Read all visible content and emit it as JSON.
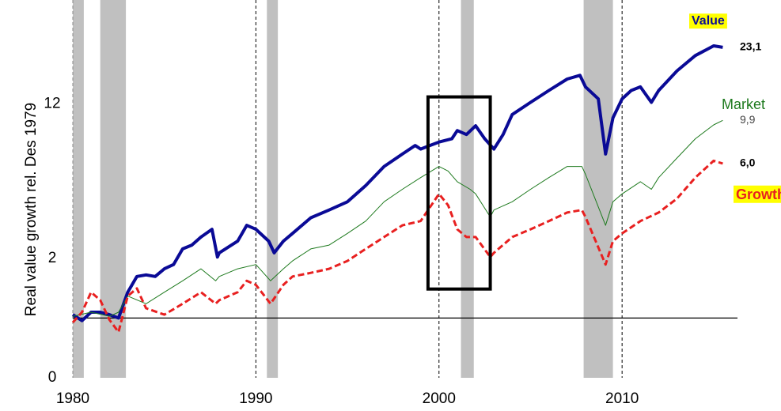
{
  "chart_data": {
    "type": "line",
    "y_label": "Real value growth rel.  Des 1979",
    "log_scale_y": true,
    "xlim": [
      1980,
      2016
    ],
    "xticks": [
      1980,
      1990,
      2000,
      2010
    ],
    "ylim": [
      0.5,
      40
    ],
    "yticks": [
      {
        "value": 0.5,
        "label": "0"
      },
      2,
      12
    ],
    "reference_line": 1,
    "recessions": [
      [
        1980,
        1980.6
      ],
      [
        1981.5,
        1982.9
      ],
      [
        1990.6,
        1991.2
      ],
      [
        2001.2,
        2001.9
      ],
      [
        2007.9,
        2009.5
      ]
    ],
    "highlight_box": {
      "x": [
        1999.4,
        2002.8
      ],
      "y": [
        1.4,
        13
      ]
    },
    "series": [
      {
        "name": "Value",
        "color": "#0a0a96",
        "line_width": 4,
        "dashed": false,
        "label_bg": "#ffff00",
        "end_label": "23,1",
        "x": [
          1980,
          1980.5,
          1981,
          1981.5,
          1982,
          1982.5,
          1983,
          1983.5,
          1984,
          1984.5,
          1985,
          1985.5,
          1986,
          1986.5,
          1987,
          1987.6,
          1987.9,
          1988,
          1989,
          1989.5,
          1990,
          1990.7,
          1991,
          1991.5,
          1992,
          1993,
          1994,
          1995,
          1996,
          1997,
          1998,
          1998.7,
          1999,
          1999.5,
          2000,
          2000.7,
          2001,
          2001.5,
          2002,
          2002.5,
          2003,
          2003.5,
          2004,
          2005,
          2006,
          2007,
          2007.7,
          2008,
          2008.7,
          2009.1,
          2009.5,
          2010,
          2010.5,
          2011,
          2011.6,
          2012,
          2013,
          2014,
          2015,
          2015.5
        ],
        "values": [
          1.04,
          0.97,
          1.07,
          1.07,
          1.04,
          1.0,
          1.35,
          1.62,
          1.65,
          1.62,
          1.77,
          1.86,
          2.23,
          2.33,
          2.56,
          2.8,
          2.03,
          2.13,
          2.44,
          2.93,
          2.8,
          2.44,
          2.13,
          2.44,
          2.67,
          3.2,
          3.5,
          3.85,
          4.65,
          5.8,
          6.7,
          7.4,
          7.1,
          7.4,
          7.7,
          8.0,
          8.8,
          8.4,
          9.3,
          8.0,
          7.1,
          8.4,
          10.6,
          12.2,
          14,
          16,
          16.7,
          14.6,
          12.7,
          6.7,
          10.2,
          12.7,
          14,
          14.6,
          12.2,
          14,
          17.6,
          21,
          23.5,
          23.1
        ]
      },
      {
        "name": "Market",
        "color": "#1e7a1e",
        "line_width": 1,
        "dashed": false,
        "end_label": "9,9",
        "x": [
          1980,
          1981,
          1982,
          1982.5,
          1983,
          1984,
          1985,
          1986,
          1987,
          1987.8,
          1988,
          1989,
          1990,
          1990.8,
          1991.5,
          1992,
          1993,
          1994,
          1995,
          1996,
          1997,
          1998,
          1999,
          2000,
          2000.5,
          2001,
          2001.7,
          2002,
          2002.8,
          2003,
          2004,
          2005,
          2006,
          2007,
          2007.8,
          2008,
          2009.1,
          2009.5,
          2010,
          2011,
          2011.6,
          2012,
          2013,
          2014,
          2015,
          2015.5
        ],
        "values": [
          1.02,
          1.07,
          1.02,
          1.07,
          1.29,
          1.18,
          1.35,
          1.54,
          1.77,
          1.54,
          1.62,
          1.77,
          1.86,
          1.54,
          1.77,
          1.94,
          2.23,
          2.33,
          2.67,
          3.08,
          3.85,
          4.45,
          5.1,
          5.8,
          5.5,
          4.86,
          4.45,
          4.22,
          3.23,
          3.5,
          3.85,
          4.45,
          5.1,
          5.8,
          5.8,
          5.3,
          2.93,
          3.85,
          4.22,
          4.86,
          4.45,
          5.1,
          6.4,
          8,
          9.4,
          9.9
        ]
      },
      {
        "name": "Growth",
        "color": "#e82020",
        "line_width": 3,
        "dashed": true,
        "label_bg": "#ffff00",
        "end_label": "6,0",
        "x": [
          1980,
          1980.5,
          1981,
          1981.5,
          1982,
          1982.5,
          1983,
          1983.5,
          1984,
          1985,
          1986,
          1987,
          1987.8,
          1988,
          1989,
          1989.5,
          1990,
          1990.8,
          1991.5,
          1992,
          1993,
          1994,
          1995,
          1996,
          1997,
          1998,
          1999,
          2000,
          2000.5,
          2001,
          2001.5,
          2002,
          2002.8,
          2003,
          2004,
          2005,
          2006,
          2007,
          2007.8,
          2008,
          2009.1,
          2009.5,
          2010,
          2011,
          2012,
          2013,
          2014,
          2015,
          2015.5
        ],
        "values": [
          0.95,
          1.07,
          1.35,
          1.23,
          0.98,
          0.85,
          1.29,
          1.41,
          1.12,
          1.04,
          1.18,
          1.35,
          1.18,
          1.23,
          1.35,
          1.54,
          1.47,
          1.18,
          1.47,
          1.62,
          1.69,
          1.77,
          1.94,
          2.23,
          2.56,
          2.93,
          3.08,
          4.22,
          3.7,
          2.8,
          2.56,
          2.56,
          2.03,
          2.13,
          2.56,
          2.8,
          3.08,
          3.4,
          3.5,
          3.23,
          1.86,
          2.44,
          2.67,
          3.08,
          3.4,
          4,
          5.1,
          6.2,
          6.0
        ]
      }
    ]
  }
}
